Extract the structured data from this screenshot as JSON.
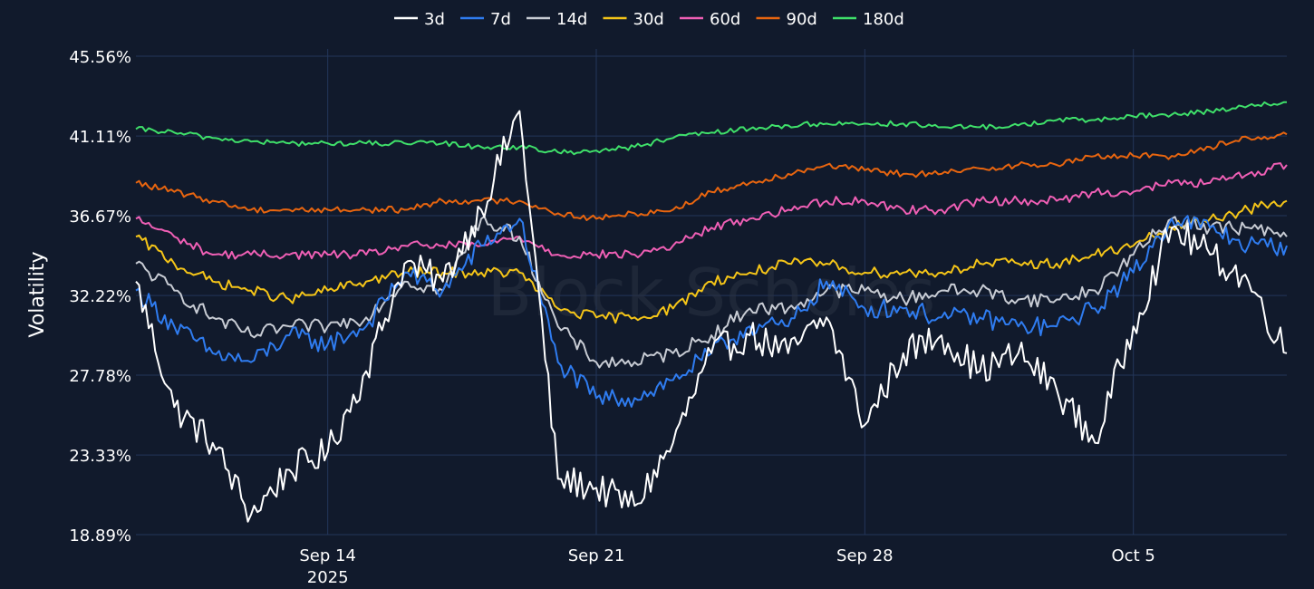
{
  "chart_data": {
    "type": "line",
    "ylabel": "Volatility",
    "watermark": "Block Scholes",
    "ylim": [
      18.89,
      45.56
    ],
    "yticks": [
      "45.56%",
      "41.11%",
      "36.67%",
      "32.22%",
      "27.78%",
      "23.33%",
      "18.89%"
    ],
    "ytick_values": [
      45.56,
      41.11,
      36.67,
      32.22,
      27.78,
      23.33,
      18.89
    ],
    "xlim": [
      "2025-09-09",
      "2025-10-09"
    ],
    "xticks": [
      {
        "date": "2025-09-14",
        "label": "Sep 14",
        "sublabel": "2025"
      },
      {
        "date": "2025-09-21",
        "label": "Sep 21",
        "sublabel": ""
      },
      {
        "date": "2025-09-28",
        "label": "Sep 28",
        "sublabel": ""
      },
      {
        "date": "2025-10-05",
        "label": "Oct 5",
        "sublabel": ""
      }
    ],
    "grid": true,
    "legend_position": "top-center",
    "x": [
      "2025-09-09",
      "2025-09-10",
      "2025-09-11",
      "2025-09-12",
      "2025-09-13",
      "2025-09-14",
      "2025-09-15",
      "2025-09-16",
      "2025-09-17",
      "2025-09-18",
      "2025-09-19",
      "2025-09-20",
      "2025-09-21",
      "2025-09-22",
      "2025-09-23",
      "2025-09-24",
      "2025-09-25",
      "2025-09-26",
      "2025-09-27",
      "2025-09-28",
      "2025-09-29",
      "2025-09-30",
      "2025-10-01",
      "2025-10-02",
      "2025-10-03",
      "2025-10-04",
      "2025-10-05",
      "2025-10-06",
      "2025-10-07",
      "2025-10-08",
      "2025-10-09"
    ],
    "series": [
      {
        "name": "3d",
        "color": "#ffffff",
        "values": [
          33.0,
          26.0,
          24.0,
          20.0,
          22.5,
          23.5,
          28.0,
          34.0,
          33.0,
          37.0,
          42.5,
          22.0,
          21.5,
          20.5,
          24.0,
          29.0,
          30.0,
          29.0,
          31.0,
          25.0,
          29.0,
          30.0,
          28.0,
          29.0,
          27.0,
          24.0,
          30.5,
          36.0,
          34.5,
          33.0,
          29.0
        ]
      },
      {
        "name": "7d",
        "color": "#2f7cf0",
        "values": [
          32.5,
          30.5,
          29.0,
          28.5,
          30.0,
          29.5,
          30.5,
          33.5,
          32.5,
          35.0,
          36.5,
          28.5,
          26.5,
          26.5,
          27.5,
          29.0,
          30.5,
          30.5,
          33.0,
          31.5,
          31.5,
          31.0,
          31.0,
          30.5,
          30.5,
          31.5,
          33.5,
          36.5,
          36.0,
          35.0,
          35.0
        ]
      },
      {
        "name": "14d",
        "color": "#c8ccd4",
        "values": [
          34.0,
          32.5,
          31.0,
          30.0,
          30.5,
          30.5,
          31.0,
          33.0,
          32.5,
          36.5,
          35.5,
          30.5,
          28.5,
          28.5,
          29.0,
          30.0,
          31.5,
          31.5,
          32.5,
          32.5,
          32.0,
          32.5,
          32.5,
          32.0,
          32.0,
          32.5,
          34.5,
          36.5,
          36.0,
          36.0,
          35.5
        ]
      },
      {
        "name": "30d",
        "color": "#f5c518",
        "values": [
          35.5,
          34.0,
          33.0,
          32.5,
          32.0,
          32.5,
          33.0,
          33.5,
          33.5,
          33.5,
          33.5,
          31.5,
          31.0,
          31.0,
          31.5,
          33.0,
          33.5,
          34.0,
          34.0,
          33.5,
          33.5,
          33.5,
          34.0,
          34.0,
          34.0,
          34.5,
          35.0,
          36.0,
          36.5,
          37.0,
          37.5
        ]
      },
      {
        "name": "60d",
        "color": "#ef5fb5",
        "values": [
          36.5,
          35.5,
          34.5,
          34.5,
          34.5,
          34.5,
          34.5,
          35.0,
          35.0,
          35.0,
          35.5,
          34.5,
          34.5,
          34.5,
          35.0,
          36.0,
          36.5,
          37.0,
          37.5,
          37.5,
          37.0,
          37.0,
          37.5,
          37.5,
          37.5,
          38.0,
          38.0,
          38.5,
          38.5,
          39.0,
          39.5
        ]
      },
      {
        "name": "90d",
        "color": "#e8650f",
        "values": [
          38.5,
          38.0,
          37.5,
          37.0,
          37.0,
          37.0,
          37.0,
          37.0,
          37.5,
          37.5,
          37.5,
          36.8,
          36.5,
          36.8,
          37.0,
          38.0,
          38.5,
          39.0,
          39.5,
          39.2,
          39.0,
          39.0,
          39.3,
          39.5,
          39.5,
          40.0,
          40.0,
          40.0,
          40.5,
          41.0,
          41.2
        ]
      },
      {
        "name": "180d",
        "color": "#3fe06a",
        "values": [
          41.5,
          41.3,
          41.0,
          40.8,
          40.7,
          40.7,
          40.7,
          40.7,
          40.7,
          40.5,
          40.5,
          40.2,
          40.3,
          40.5,
          41.0,
          41.3,
          41.5,
          41.7,
          41.8,
          41.8,
          41.8,
          41.6,
          41.6,
          41.7,
          42.0,
          42.0,
          42.2,
          42.3,
          42.5,
          42.8,
          43.0
        ]
      }
    ]
  }
}
